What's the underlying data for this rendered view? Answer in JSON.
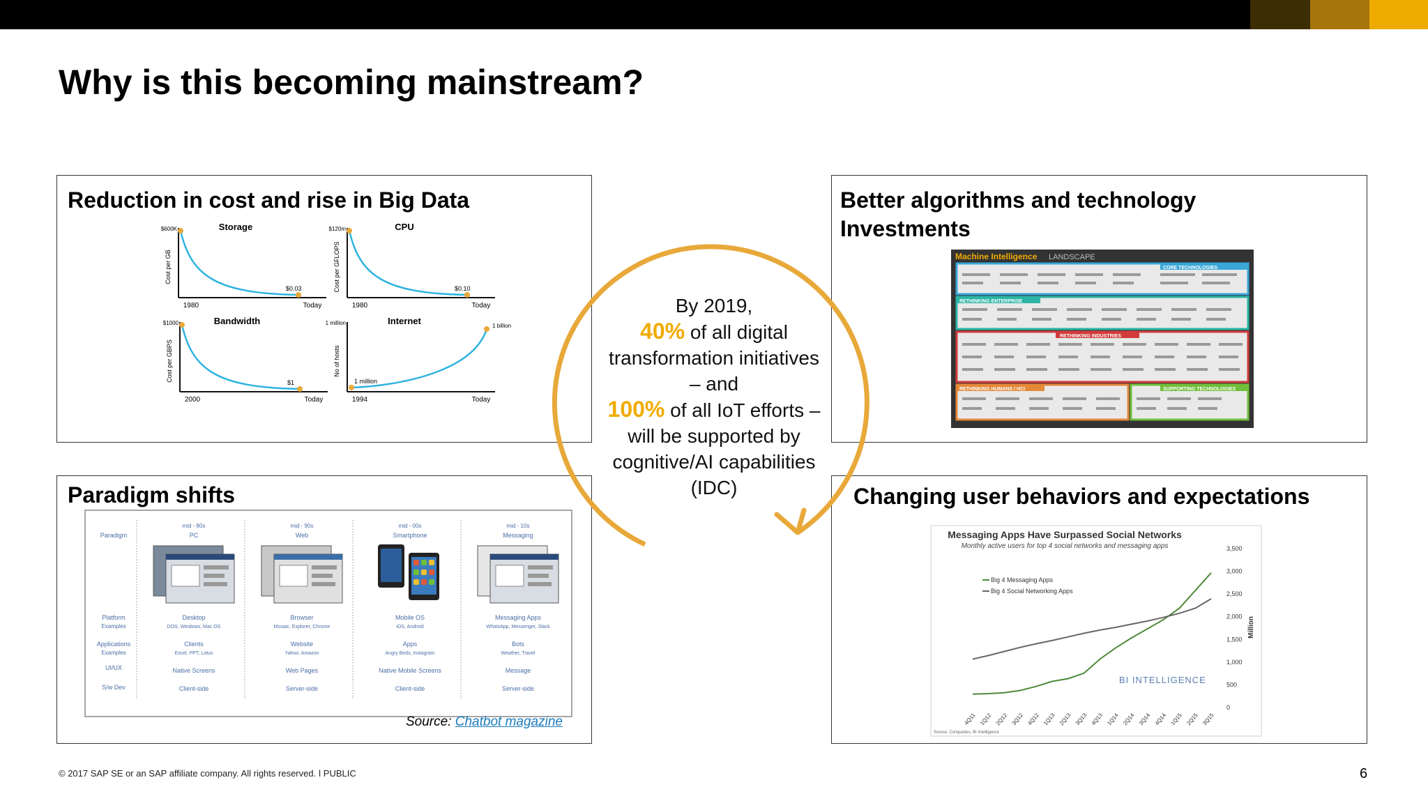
{
  "slide": {
    "title": "Why is this becoming mainstream?",
    "page_number": "6",
    "footer": "© 2017 SAP SE or an SAP affiliate company. All rights reserved. ǀ   PUBLIC",
    "accent_colors": [
      "#3d2d05",
      "#a7760a",
      "#f0ab00"
    ]
  },
  "panels": {
    "cost": {
      "title": "Reduction in cost and rise in Big Data",
      "charts": [
        {
          "name": "Storage",
          "ylabel": "Cost per GB",
          "start_value": "$600K",
          "end_value": "$0.03",
          "x_start": "1980",
          "x_end": "Today",
          "trend": "decay"
        },
        {
          "name": "CPU",
          "ylabel": "Cost per GFLOPS",
          "start_value": "$120m",
          "end_value": "$0.10",
          "x_start": "1980",
          "x_end": "Today",
          "trend": "decay"
        },
        {
          "name": "Bandwidth",
          "ylabel": "Cost per GBPS",
          "start_value": "$1000",
          "end_value": "$1",
          "x_start": "2000",
          "x_end": "Today",
          "trend": "decay"
        },
        {
          "name": "Internet",
          "ylabel": "No of hosts",
          "start_value": "1 million",
          "end_value": "1 billion",
          "x_start": "1994",
          "x_end": "Today",
          "trend": "growth"
        }
      ]
    },
    "algorithms": {
      "title_line1": "Better algorithms and technology",
      "title_line2": "Investments",
      "landscape": {
        "title": "Machine Intelligence",
        "title_suffix": "LANDSCAPE",
        "sections": [
          "CORE TECHNOLOGIES",
          "RETHINKING ENTERPRISE",
          "RETHINKING INDUSTRIES",
          "RETHINKING HUMANS / HCI",
          "SUPPORTING TECHNOLOGIES"
        ]
      }
    },
    "paradigm": {
      "title": "Paradigm shifts",
      "row_labels": [
        {
          "key": "Paradigm",
          "sub": ""
        },
        {
          "key": "Platform",
          "sub": "Examples"
        },
        {
          "key": "Applications",
          "sub": "Examples"
        },
        {
          "key": "UI/UX",
          "sub": ""
        },
        {
          "key": "S/w Dev",
          "sub": ""
        }
      ],
      "columns": [
        {
          "era": "mid - 80s",
          "name": "PC",
          "platform": "Desktop",
          "platform_ex": "DOS, Windows, Mac OS",
          "apps": "Clients",
          "apps_ex": "Excel, PPT, Lotus",
          "ui": "Native Screens",
          "dev": "Client-side"
        },
        {
          "era": "mid - 90s",
          "name": "Web",
          "platform": "Browser",
          "platform_ex": "Mosaic, Explorer, Chrome",
          "apps": "Website",
          "apps_ex": "Yahoo, Amazon",
          "ui": "Web Pages",
          "dev": "Server-side"
        },
        {
          "era": "mid - 00s",
          "name": "Smartphone",
          "platform": "Mobile OS",
          "platform_ex": "iOS, Android",
          "apps": "Apps",
          "apps_ex": "Angry Birds, Instagram",
          "ui": "Native Mobile Screens",
          "dev": "Client-side"
        },
        {
          "era": "mid - 10s",
          "name": "Messaging",
          "platform": "Messaging Apps",
          "platform_ex": "WhatsApp, Messenger, Slack",
          "apps": "Bots",
          "apps_ex": "Weather, Travel",
          "ui": "Message",
          "dev": "Server-side"
        }
      ],
      "source_prefix": "Source: ",
      "source_link": "Chatbot magazine"
    },
    "behavior": {
      "title": "Changing user behaviors and expectations",
      "chart_data": {
        "type": "line",
        "title": "Messaging Apps Have Surpassed Social Networks",
        "subtitle": "Monthly active users for top 4 social networks and messaging apps",
        "ylabel": "Million",
        "ylim": [
          0,
          3500
        ],
        "yticks": [
          "3,500",
          "3,000",
          "2,500",
          "2,000",
          "1,500",
          "1,000",
          "500",
          "0"
        ],
        "x": [
          "4Q11",
          "1Q12",
          "2Q12",
          "3Q12",
          "4Q12",
          "1Q13",
          "2Q13",
          "3Q13",
          "4Q13",
          "1Q14",
          "2Q14",
          "3Q14",
          "4Q14",
          "1Q15",
          "2Q15",
          "3Q15"
        ],
        "series": [
          {
            "name": "Big 4 Messaging Apps",
            "color": "#4e8a3a",
            "values": [
              280,
              290,
              310,
              360,
              450,
              560,
              620,
              740,
              1050,
              1300,
              1520,
              1720,
              1920,
              2170,
              2560,
              2950
            ]
          },
          {
            "name": "Big 4 Social Networking Apps",
            "color": "#666666",
            "values": [
              1050,
              1130,
              1220,
              1310,
              1390,
              1460,
              1540,
              1620,
              1690,
              1750,
              1820,
              1890,
              1970,
              2060,
              2170,
              2380
            ]
          }
        ],
        "watermark": "BI INTELLIGENCE",
        "source": "Source: Companies, BI Intelligence",
        "grid": false,
        "legend_position": "top-left"
      }
    }
  },
  "center": {
    "line1": "By 2019,",
    "stat1": "40%",
    "line2": " of all digital",
    "line3": "transformation initiatives",
    "line4": "– and",
    "stat2": "100%",
    "line5": " of all IoT efforts –",
    "line6": "will be supported by",
    "line7": "cognitive/AI capabilities",
    "line8": "(IDC)"
  }
}
